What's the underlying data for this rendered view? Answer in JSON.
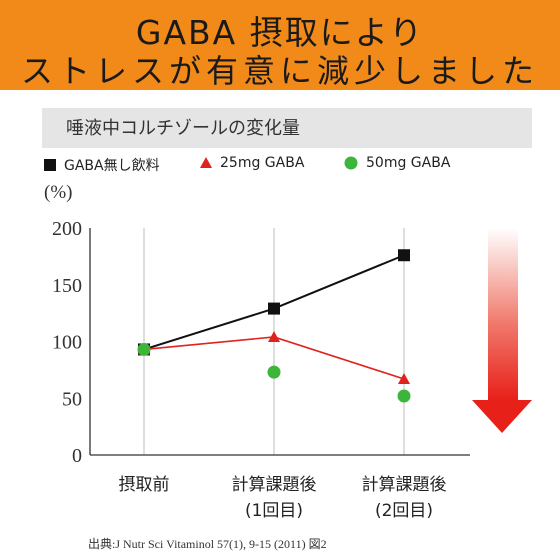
{
  "banner": {
    "line1": "GABA 摂取により",
    "line2": "ストレスが有意に減少しました",
    "color": "#f28a1a"
  },
  "chart_data": {
    "type": "line",
    "title": "唾液中コルチゾールの変化量",
    "ylabel": "(%)",
    "ylim": [
      0,
      200
    ],
    "yticks": [
      "0",
      "50",
      "100",
      "150",
      "200"
    ],
    "categories": [
      "摂取前",
      "計算課題後\n(1回目)",
      "計算課題後\n(2回目)"
    ],
    "grid": "vertical",
    "legend": "top",
    "series": [
      {
        "name": "GABA無し飲料",
        "marker": "square",
        "color": "#111111",
        "line": true,
        "values": [
          93,
          129,
          176
        ]
      },
      {
        "name": "25mg GABA",
        "marker": "triangle",
        "color": "#e0231c",
        "line": true,
        "values": [
          93,
          104,
          67
        ]
      },
      {
        "name": "50mg GABA",
        "marker": "circle",
        "color": "#3db53b",
        "line": false,
        "values": [
          93,
          73,
          52
        ]
      }
    ],
    "annotation": "decrease-arrow"
  },
  "source": "出典:J Nutr Sci Vitaminol 57(1), 9-15 (2011) 図2"
}
